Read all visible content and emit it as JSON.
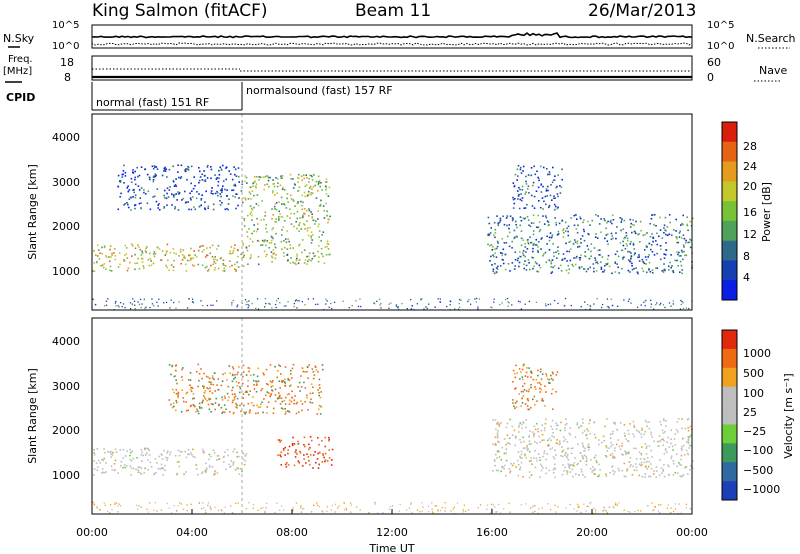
{
  "header": {
    "station": "King Salmon (fitACF)",
    "beam": "Beam 11",
    "date": "26/Mar/2013"
  },
  "top_panels": {
    "nsky_label": "N.Sky",
    "nsky_ticks": [
      "10^5",
      "10^0"
    ],
    "nsearch_label": "N.Search",
    "nsearch_ticks": [
      "10^5",
      "10^0"
    ],
    "freq_label_1": "Freq.",
    "freq_label_2": "[MHz]",
    "freq_ticks": [
      "18",
      "8"
    ],
    "nave_label": "Nave",
    "nave_ticks": [
      "60",
      "0"
    ],
    "cpid_label": "CPID",
    "cpid_modes": [
      {
        "label": "normal (fast) 151 RF",
        "start_hour": 0,
        "end_hour": 6
      },
      {
        "label": "normalsound (fast) 157 RF",
        "start_hour": 6,
        "end_hour": 24
      }
    ]
  },
  "x_axis": {
    "label": "Time UT",
    "ticks": [
      "00:00",
      "04:00",
      "08:00",
      "12:00",
      "16:00",
      "20:00",
      "00:00"
    ]
  },
  "chart_data": [
    {
      "type": "heatmap",
      "name": "power",
      "xlabel": "Time UT",
      "ylabel": "Slant Range [km]",
      "x_range_hours": [
        0,
        24
      ],
      "ylim": [
        180,
        4500
      ],
      "y_ticks": [
        "1000",
        "2000",
        "3000",
        "4000"
      ],
      "colorbar_label": "Power [dB]",
      "colorbar_ticks": [
        "4",
        "8",
        "12",
        "16",
        "20",
        "24",
        "28"
      ],
      "colorbar_colors": [
        "#0a1ee6",
        "#1540b4",
        "#2d6a8a",
        "#4fa25a",
        "#79c236",
        "#c2c72c",
        "#e39c1e",
        "#e56414",
        "#d81f0c"
      ],
      "echo_regions": [
        {
          "t0": 0.0,
          "t1": 6.2,
          "r0": 1050,
          "r1": 1650,
          "level": "mid-high"
        },
        {
          "t0": 1.0,
          "t1": 6.0,
          "r0": 2400,
          "r1": 3400,
          "level": "low"
        },
        {
          "t0": 6.0,
          "t1": 9.5,
          "r0": 1200,
          "r1": 3200,
          "level": "mid"
        },
        {
          "t0": 15.8,
          "t1": 24.0,
          "r0": 1000,
          "r1": 2300,
          "level": "low-mid"
        },
        {
          "t0": 16.8,
          "t1": 18.8,
          "r0": 2400,
          "r1": 3400,
          "level": "low"
        }
      ]
    },
    {
      "type": "heatmap",
      "name": "velocity",
      "xlabel": "Time UT",
      "ylabel": "Slant Range [km]",
      "x_range_hours": [
        0,
        24
      ],
      "ylim": [
        180,
        4500
      ],
      "y_ticks": [
        "1000",
        "2000",
        "3000",
        "4000"
      ],
      "colorbar_label": "Velocity [m s⁻¹]",
      "colorbar_ticks": [
        "1000",
        "500",
        "100",
        "25",
        "−25",
        "−100",
        "−500",
        "−1000"
      ],
      "colorbar_colors": [
        "#1c3fb8",
        "#2c6aa0",
        "#3e9a5c",
        "#6ccf3a",
        "#bebebe",
        "#bebebe",
        "#f0a21e",
        "#ef6a12",
        "#e02a0e"
      ],
      "echo_regions": [
        {
          "t0": 0.0,
          "t1": 6.2,
          "r0": 1050,
          "r1": 1650,
          "level": "ground-scatter"
        },
        {
          "t0": 3.0,
          "t1": 9.2,
          "r0": 2400,
          "r1": 3500,
          "level": "away-orange"
        },
        {
          "t0": 7.4,
          "t1": 9.6,
          "r0": 1200,
          "r1": 1900,
          "level": "away-red"
        },
        {
          "t0": 16.0,
          "t1": 24.0,
          "r0": 1000,
          "r1": 2300,
          "level": "ground-scatter"
        },
        {
          "t0": 16.8,
          "t1": 18.6,
          "r0": 2500,
          "r1": 3500,
          "level": "away-orange"
        }
      ]
    }
  ]
}
